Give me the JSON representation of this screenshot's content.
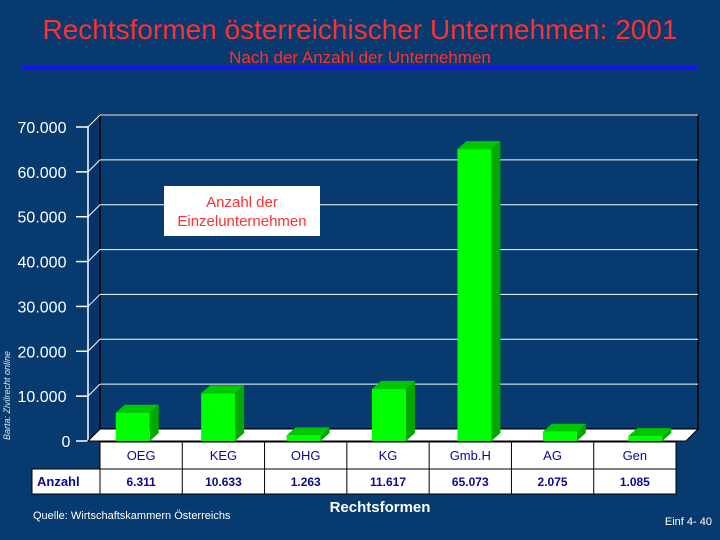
{
  "header": {
    "title": "Rechtsformen österreichischer Unternehmen: 2001",
    "subtitle": "Nach der Anzahl der Unternehmen"
  },
  "side_credit": "Barta: Zivilrecht online",
  "footer": {
    "source": "Quelle: Wirtschaftskammern Österreichs",
    "page": "Einf 4- 40"
  },
  "colors": {
    "background": "#073a6e",
    "title": "#ff3030",
    "bar": "#00ff00",
    "gridline": "#ffffff",
    "table_text": "#0a0a8c"
  },
  "chart_data": {
    "type": "bar",
    "title": "Rechtsformen österreichischer Unternehmen: 2001",
    "subtitle": "Nach der Anzahl der Unternehmen",
    "xlabel": "Rechtsformen",
    "ylabel": "",
    "ylim": [
      0,
      70000
    ],
    "y_ticks": [
      0,
      10000,
      20000,
      30000,
      40000,
      50000,
      60000,
      70000
    ],
    "y_tick_labels": [
      "0",
      "10.000",
      "20.000",
      "30.000",
      "40.000",
      "50.000",
      "60.000",
      "70.000"
    ],
    "categories": [
      "OEG",
      "KEG",
      "OHG",
      "KG",
      "Gmb.H",
      "AG",
      "Gen"
    ],
    "series": [
      {
        "name": "Anzahl",
        "values": [
          6311,
          10633,
          1263,
          11617,
          65073,
          2075,
          1085
        ],
        "labels": [
          "6.311",
          "10.633",
          "1.263",
          "11.617",
          "65.073",
          "2.075",
          "1.085"
        ]
      }
    ],
    "table_row_label": "Anzahl",
    "annotation": [
      "Anzahl der",
      "Einzelunternehmen"
    ],
    "grid": true,
    "legend": "none"
  }
}
